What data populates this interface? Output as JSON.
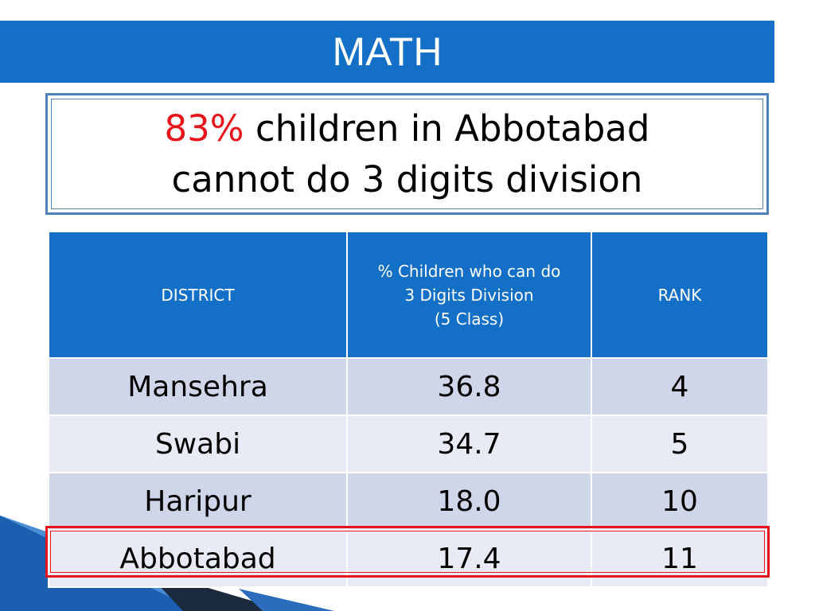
{
  "slide": {
    "title": "MATH",
    "headline_pct": "83%",
    "headline_line1": "children in Abbotabad",
    "headline_line2": "cannot do 3 digits division"
  },
  "table": {
    "headers": {
      "district": "DISTRICT",
      "pct_line1": "% Children who can do",
      "pct_line2": "3 Digits Division",
      "pct_line3": "(5 Class)",
      "rank": "RANK"
    },
    "rows": [
      {
        "district": "Mansehra",
        "pct": "36.8",
        "rank": "4"
      },
      {
        "district": "Swabi",
        "pct": "34.7",
        "rank": "5"
      },
      {
        "district": "Haripur",
        "pct": "18.0",
        "rank": "10"
      },
      {
        "district": "Abbotabad",
        "pct": "17.4",
        "rank": "11"
      }
    ]
  },
  "colors": {
    "title_bar": "#1470c6",
    "highlight": "#e8141b",
    "row_odd": "#cfd6e9",
    "row_even": "#e8ebf5"
  }
}
